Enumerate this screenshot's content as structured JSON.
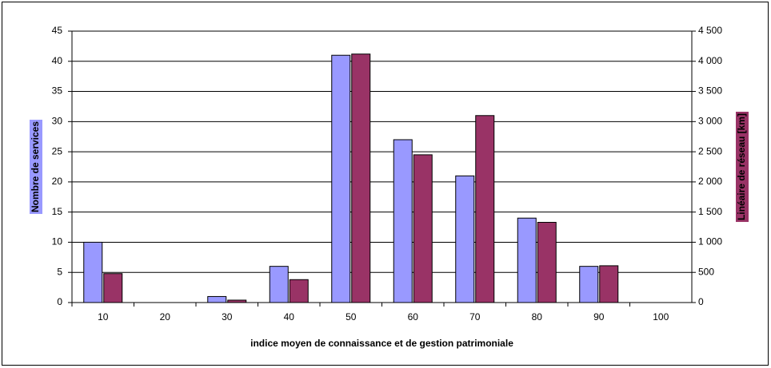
{
  "chart_data": {
    "type": "bar",
    "categories": [
      "10",
      "20",
      "30",
      "40",
      "50",
      "60",
      "70",
      "80",
      "90",
      "100"
    ],
    "series": [
      {
        "name": "Nombre de services",
        "color": "#9999ff",
        "values": [
          10,
          0,
          1,
          6,
          41,
          27,
          21,
          14,
          6,
          0
        ]
      },
      {
        "name": "Linéaire de réseau [km]",
        "color": "#993366",
        "axis": "y2",
        "values": [
          480,
          0,
          40,
          380,
          4120,
          2450,
          3100,
          1330,
          610,
          0
        ]
      }
    ],
    "xlabel": "indice moyen de connaissance et de gestion patrimoniale",
    "ylim": [
      0,
      45
    ],
    "yticks": [
      0,
      5,
      10,
      15,
      20,
      25,
      30,
      35,
      40,
      45
    ],
    "y2lim": [
      0,
      4500
    ],
    "y2ticks": [
      0,
      500,
      {
        "value": 1000,
        "label": "1 000"
      },
      {
        "value": 1500,
        "label": "1 500"
      },
      {
        "value": 2000,
        "label": "2 000"
      },
      {
        "value": 2500,
        "label": "2 500"
      },
      {
        "value": 3000,
        "label": "3 000"
      },
      {
        "value": 3500,
        "label": "3 500"
      },
      {
        "value": 4000,
        "label": "4 000"
      },
      {
        "value": 4500,
        "label": "4 500"
      }
    ],
    "grid": true
  }
}
